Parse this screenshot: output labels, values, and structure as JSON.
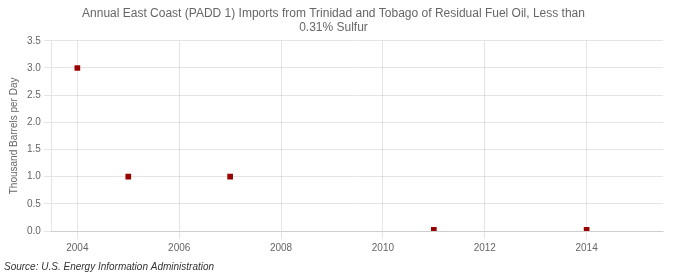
{
  "chart_data": {
    "type": "scatter",
    "title": "Annual East Coast (PADD 1) Imports from Trinidad and Tobago of Residual Fuel Oil, Less than\n0.31% Sulfur",
    "y_label": "Thousand Barrels per Day",
    "source": "Source: U.S. Energy Information Administration",
    "x": [
      2004,
      2005,
      2007,
      2011,
      2014
    ],
    "values": [
      3.0,
      1.0,
      1.0,
      0.02,
      0.02
    ],
    "color": "#990000",
    "marker": "square",
    "xlim": [
      2003.5,
      2015.5
    ],
    "xticks": [
      2004,
      2006,
      2008,
      2010,
      2012,
      2014
    ],
    "ylim": [
      0.0,
      3.5
    ],
    "yticks": [
      {
        "value": 0.0,
        "label": "0.0"
      },
      0.5,
      {
        "value": 1.0,
        "label": "1.0"
      },
      1.5,
      {
        "value": 2.0,
        "label": "2.0"
      },
      2.5,
      {
        "value": 3.0,
        "label": "3.0"
      },
      3.5
    ],
    "grid": true
  }
}
